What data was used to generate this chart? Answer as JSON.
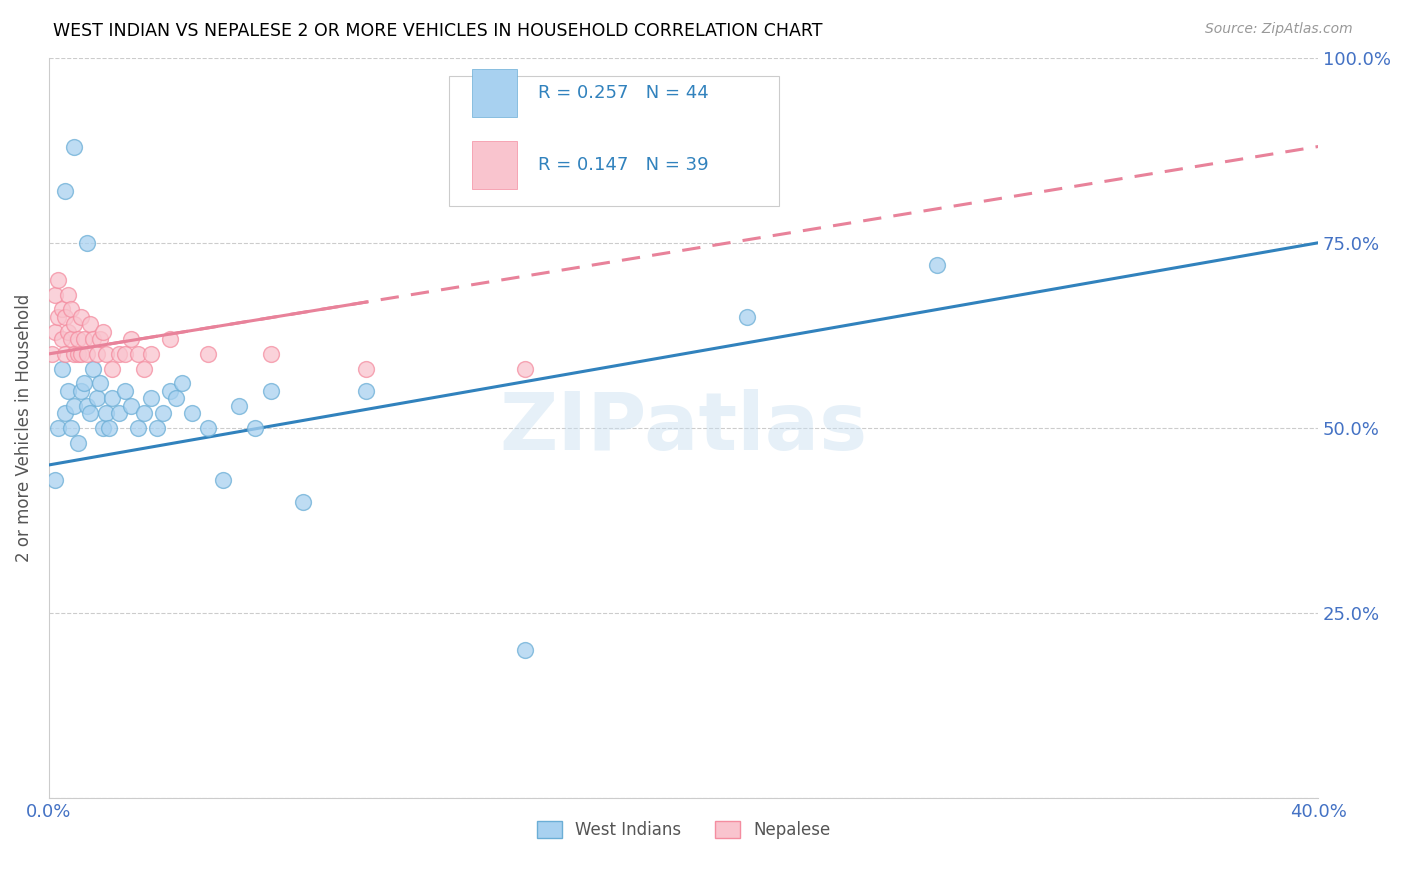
{
  "title": "WEST INDIAN VS NEPALESE 2 OR MORE VEHICLES IN HOUSEHOLD CORRELATION CHART",
  "source": "Source: ZipAtlas.com",
  "ylabel": "2 or more Vehicles in Household",
  "watermark": "ZIPatlas",
  "xmin": 0.0,
  "xmax": 0.4,
  "ymin": 0.0,
  "ymax": 1.0,
  "blue_scatter_color": "#a8d1f0",
  "blue_edge_color": "#6baed6",
  "pink_scatter_color": "#f9c4ce",
  "pink_edge_color": "#f48da0",
  "line_blue_color": "#3182bd",
  "line_pink_color": "#e8829a",
  "axis_tick_color": "#4472c4",
  "ylabel_color": "#555555",
  "grid_color": "#cccccc",
  "west_indians_x": [
    0.002,
    0.003,
    0.004,
    0.005,
    0.006,
    0.007,
    0.008,
    0.009,
    0.01,
    0.011,
    0.012,
    0.013,
    0.014,
    0.015,
    0.016,
    0.017,
    0.018,
    0.019,
    0.02,
    0.022,
    0.024,
    0.026,
    0.028,
    0.03,
    0.032,
    0.034,
    0.036,
    0.038,
    0.04,
    0.042,
    0.045,
    0.05,
    0.055,
    0.06,
    0.065,
    0.07,
    0.08,
    0.1,
    0.15,
    0.22,
    0.28,
    0.005,
    0.008,
    0.012
  ],
  "west_indians_y": [
    0.43,
    0.5,
    0.58,
    0.52,
    0.55,
    0.5,
    0.53,
    0.48,
    0.55,
    0.56,
    0.53,
    0.52,
    0.58,
    0.54,
    0.56,
    0.5,
    0.52,
    0.5,
    0.54,
    0.52,
    0.55,
    0.53,
    0.5,
    0.52,
    0.54,
    0.5,
    0.52,
    0.55,
    0.54,
    0.56,
    0.52,
    0.5,
    0.43,
    0.53,
    0.5,
    0.55,
    0.4,
    0.55,
    0.2,
    0.65,
    0.72,
    0.82,
    0.88,
    0.75
  ],
  "nepalese_x": [
    0.001,
    0.002,
    0.002,
    0.003,
    0.003,
    0.004,
    0.004,
    0.005,
    0.005,
    0.006,
    0.006,
    0.007,
    0.007,
    0.008,
    0.008,
    0.009,
    0.009,
    0.01,
    0.01,
    0.011,
    0.012,
    0.013,
    0.014,
    0.015,
    0.016,
    0.017,
    0.018,
    0.02,
    0.022,
    0.024,
    0.026,
    0.028,
    0.03,
    0.032,
    0.038,
    0.05,
    0.07,
    0.1,
    0.15
  ],
  "nepalese_y": [
    0.6,
    0.63,
    0.68,
    0.65,
    0.7,
    0.62,
    0.66,
    0.6,
    0.65,
    0.63,
    0.68,
    0.62,
    0.66,
    0.6,
    0.64,
    0.6,
    0.62,
    0.6,
    0.65,
    0.62,
    0.6,
    0.64,
    0.62,
    0.6,
    0.62,
    0.63,
    0.6,
    0.58,
    0.6,
    0.6,
    0.62,
    0.6,
    0.58,
    0.6,
    0.62,
    0.6,
    0.6,
    0.58,
    0.58
  ]
}
